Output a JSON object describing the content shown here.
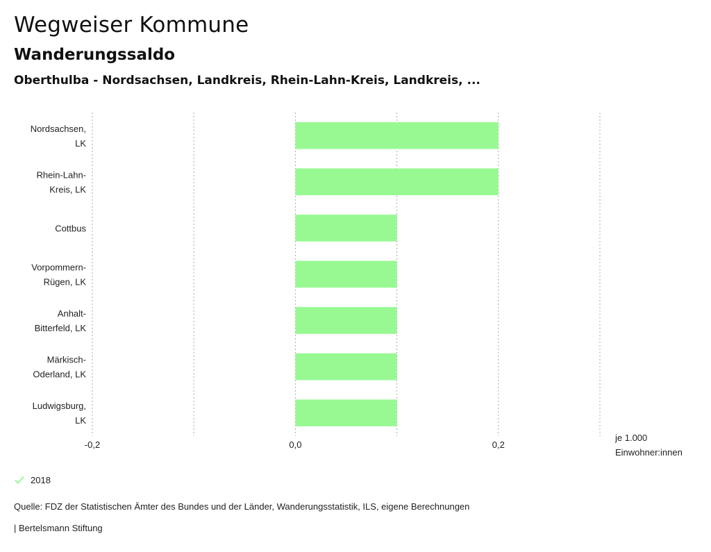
{
  "header": {
    "title": "Wegweiser Kommune",
    "subtitle": "Wanderungssaldo",
    "regions": "Oberthulba - Nordsachsen, Landkreis, Rhein-Lahn-Kreis, Landkreis, ..."
  },
  "chart_data": {
    "type": "bar",
    "orientation": "horizontal",
    "title": "Wanderungssaldo",
    "categories": [
      [
        "Nordsachsen,",
        "LK"
      ],
      [
        "Rhein-Lahn-",
        "Kreis, LK"
      ],
      [
        "Cottbus"
      ],
      [
        "Vorpommern-",
        "Rügen, LK"
      ],
      [
        "Anhalt-",
        "Bitterfeld, LK"
      ],
      [
        "Märkisch-",
        "Oderland, LK"
      ],
      [
        "Ludwigsburg,",
        "LK"
      ]
    ],
    "series": [
      {
        "name": "2018",
        "color": "#98f993",
        "values": [
          0.2,
          0.2,
          0.1,
          0.1,
          0.1,
          0.1,
          0.1
        ]
      }
    ],
    "xlim": [
      -0.2,
      0.3
    ],
    "gridlines": [
      -0.2,
      -0.1,
      0.0,
      0.1,
      0.2,
      0.3
    ],
    "tick_labels": [
      "-0,2",
      "0,0",
      "0,2"
    ],
    "tick_values": [
      -0.2,
      0.0,
      0.2
    ],
    "xlabel": [
      "je 1.000",
      "Einwohner:innen"
    ],
    "grid": true
  },
  "legend": {
    "label": "2018",
    "color": "#98f993"
  },
  "footer": {
    "source": "Quelle: FDZ der Statistischen Ämter des Bundes und der Länder, Wanderungsstatistik, ILS, eigene Berechnungen",
    "credit": "| Bertelsmann Stiftung"
  }
}
